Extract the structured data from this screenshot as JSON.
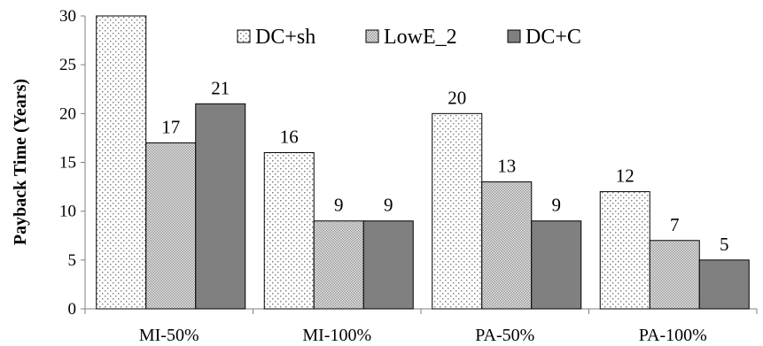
{
  "chart_data": {
    "type": "bar",
    "categories": [
      "MI-50%",
      "MI-100%",
      "PA-50%",
      "PA-100%"
    ],
    "series": [
      {
        "name": "DC+sh",
        "values": [
          30,
          16,
          20,
          12
        ],
        "labels": [
          "",
          "16",
          "20",
          "12"
        ],
        "fill": "dotted",
        "color": "#f2f2f2"
      },
      {
        "name": "LowE_2",
        "values": [
          17,
          9,
          13,
          7
        ],
        "labels": [
          "17",
          "9",
          "13",
          "7"
        ],
        "fill": "crosshatch",
        "color": "#d4d4d4"
      },
      {
        "name": "DC+C",
        "values": [
          21,
          9,
          9,
          5
        ],
        "labels": [
          "21",
          "9",
          "9",
          "5"
        ],
        "fill": "solid",
        "color": "#808080"
      }
    ],
    "ylabel": "Payback Time (Years)",
    "xlabel": "",
    "title": "",
    "ylim": [
      0,
      30
    ],
    "yticks": [
      "0",
      "5",
      "10",
      "15",
      "20",
      "25",
      "30"
    ],
    "grid": false,
    "legend_position": "top"
  }
}
